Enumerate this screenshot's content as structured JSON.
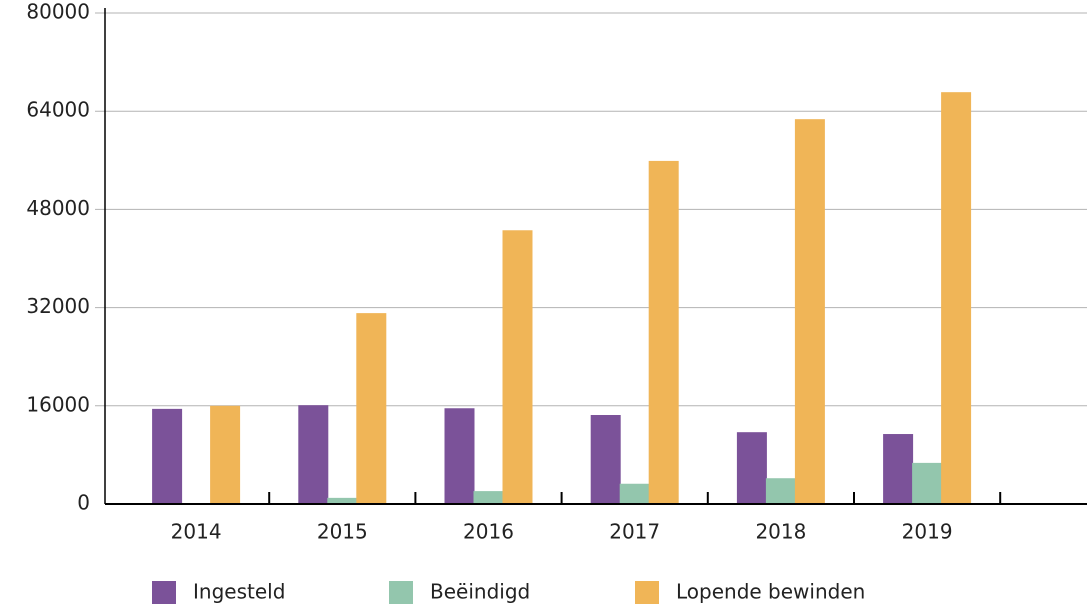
{
  "chart_data": {
    "type": "bar",
    "categories": [
      "2014",
      "2015",
      "2016",
      "2017",
      "2018",
      "2019"
    ],
    "series": [
      {
        "name": "Ingesteld",
        "color": "#7b5299",
        "values": [
          15500,
          16100,
          15600,
          14500,
          11700,
          11400
        ]
      },
      {
        "name": "Beëindigd",
        "color": "#93c6ad",
        "values": [
          0,
          1000,
          2100,
          3300,
          4200,
          6700
        ]
      },
      {
        "name": "Lopende bewinden",
        "color": "#f0b557",
        "values": [
          16000,
          31100,
          44600,
          55900,
          62700,
          67100
        ]
      }
    ],
    "ylim": [
      0,
      80000
    ],
    "yticks": [
      0,
      16000,
      32000,
      48000,
      64000,
      80000
    ],
    "grid": true
  }
}
